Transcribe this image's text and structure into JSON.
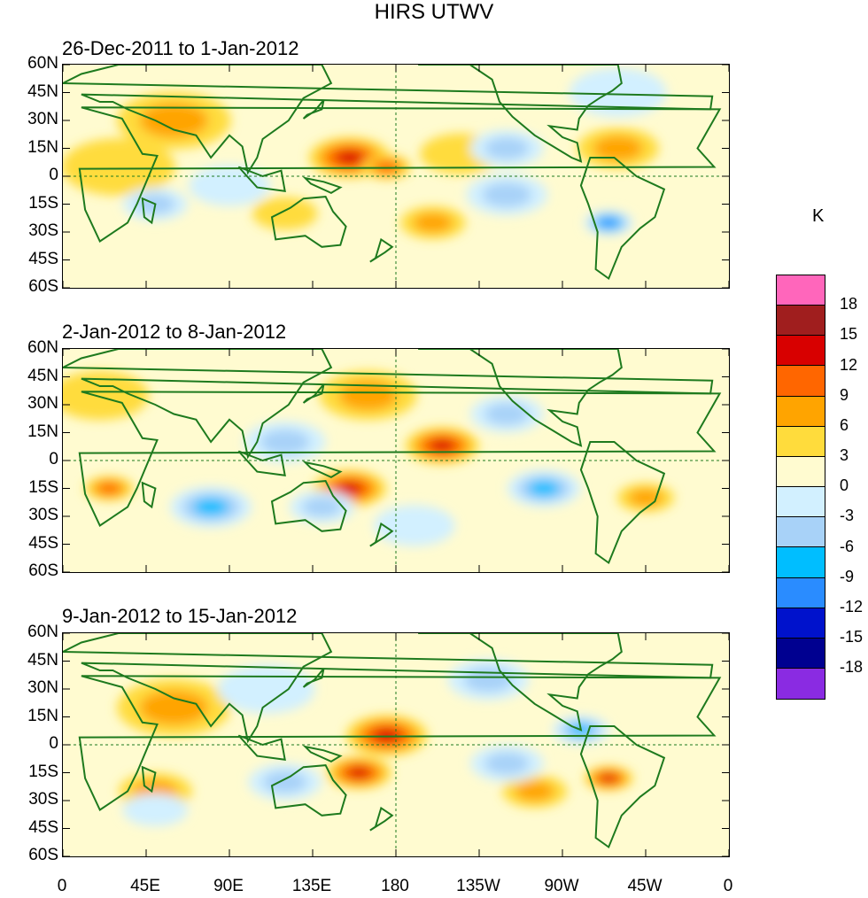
{
  "title": "HIRS UTWV",
  "chart_data": {
    "type": "heatmap",
    "variable": "HIRS UTWV",
    "unit": "K",
    "panels": [
      {
        "subtitle": "26-Dec-2011 to 1-Jan-2012",
        "anomalies": [
          {
            "lon": 155,
            "lat": 10,
            "value": 13,
            "spread": 10
          },
          {
            "lon": 175,
            "lat": 5,
            "value": 9,
            "spread": 6
          },
          {
            "lon": 60,
            "lat": 30,
            "value": 8,
            "spread": 14
          },
          {
            "lon": 30,
            "lat": 5,
            "value": 5,
            "spread": 14
          },
          {
            "lon": 215,
            "lat": 12,
            "value": 5,
            "spread": 10
          },
          {
            "lon": 300,
            "lat": 15,
            "value": 6,
            "spread": 10
          },
          {
            "lon": 200,
            "lat": -25,
            "value": 7,
            "spread": 8
          },
          {
            "lon": 120,
            "lat": -20,
            "value": 4,
            "spread": 8
          },
          {
            "lon": 240,
            "lat": 15,
            "value": -8,
            "spread": 9
          },
          {
            "lon": 295,
            "lat": -25,
            "value": -14,
            "spread": 6
          },
          {
            "lon": 240,
            "lat": -10,
            "value": -7,
            "spread": 10
          },
          {
            "lon": 50,
            "lat": -15,
            "value": -6,
            "spread": 8
          },
          {
            "lon": 300,
            "lat": 45,
            "value": -4,
            "spread": 12
          },
          {
            "lon": 90,
            "lat": -5,
            "value": -5,
            "spread": 10
          }
        ]
      },
      {
        "subtitle": "2-Jan-2012 to 8-Jan-2012",
        "anomalies": [
          {
            "lon": 155,
            "lat": -15,
            "value": 13,
            "spread": 9
          },
          {
            "lon": 205,
            "lat": 8,
            "value": 12,
            "spread": 9
          },
          {
            "lon": 25,
            "lat": -15,
            "value": 11,
            "spread": 6
          },
          {
            "lon": 165,
            "lat": 35,
            "value": 6,
            "spread": 12
          },
          {
            "lon": 315,
            "lat": -20,
            "value": 8,
            "spread": 7
          },
          {
            "lon": 20,
            "lat": 35,
            "value": 5,
            "spread": 12
          },
          {
            "lon": 240,
            "lat": 25,
            "value": -8,
            "spread": 9
          },
          {
            "lon": 80,
            "lat": -25,
            "value": -9,
            "spread": 10
          },
          {
            "lon": 260,
            "lat": -15,
            "value": -10,
            "spread": 9
          },
          {
            "lon": 120,
            "lat": 10,
            "value": -6,
            "spread": 10
          },
          {
            "lon": 190,
            "lat": -35,
            "value": -4,
            "spread": 10
          },
          {
            "lon": 140,
            "lat": -25,
            "value": -6,
            "spread": 8
          }
        ]
      },
      {
        "subtitle": "9-Jan-2012 to 15-Jan-2012",
        "anomalies": [
          {
            "lon": 175,
            "lat": 5,
            "value": 13,
            "spread": 10
          },
          {
            "lon": 160,
            "lat": -15,
            "value": 12,
            "spread": 8
          },
          {
            "lon": 295,
            "lat": -18,
            "value": 12,
            "spread": 6
          },
          {
            "lon": 60,
            "lat": 20,
            "value": 6,
            "spread": 14
          },
          {
            "lon": 50,
            "lat": -25,
            "value": 6,
            "spread": 9
          },
          {
            "lon": 255,
            "lat": -25,
            "value": 6,
            "spread": 8
          },
          {
            "lon": 230,
            "lat": 35,
            "value": -8,
            "spread": 10
          },
          {
            "lon": 120,
            "lat": -20,
            "value": -8,
            "spread": 9
          },
          {
            "lon": 280,
            "lat": 8,
            "value": -9,
            "spread": 7
          },
          {
            "lon": 110,
            "lat": 30,
            "value": -5,
            "spread": 12
          },
          {
            "lon": 50,
            "lat": -35,
            "value": -5,
            "spread": 8
          },
          {
            "lon": 240,
            "lat": -10,
            "value": -6,
            "spread": 9
          }
        ]
      }
    ],
    "x_ticks": [
      "0",
      "45E",
      "90E",
      "135E",
      "180",
      "135W",
      "90W",
      "45W",
      "0"
    ],
    "x_tick_lons": [
      0,
      45,
      90,
      135,
      180,
      225,
      270,
      315,
      360
    ],
    "y_ticks": [
      "60N",
      "45N",
      "30N",
      "15N",
      "0",
      "15S",
      "30S",
      "45S",
      "60S"
    ],
    "y_tick_lats": [
      60,
      45,
      30,
      15,
      0,
      -15,
      -30,
      -45,
      -60
    ],
    "xlim": [
      0,
      360
    ],
    "ylim": [
      -60,
      60
    ],
    "colorbar": {
      "levels": [
        "18",
        "15",
        "12",
        "9",
        "6",
        "3",
        "0",
        "-3",
        "-6",
        "-9",
        "-12",
        "-15",
        "-18"
      ],
      "level_values": [
        18,
        15,
        12,
        9,
        6,
        3,
        0,
        -3,
        -6,
        -9,
        -12,
        -15,
        -18
      ],
      "colors": [
        "#ff66bb",
        "#a01e1e",
        "#d80000",
        "#ff6600",
        "#ffa400",
        "#ffdc3c",
        "#fffbd0",
        "#d2f0ff",
        "#a8d2f8",
        "#00beff",
        "#2a8cff",
        "#0012cc",
        "#000090",
        "#8a2be2"
      ]
    }
  }
}
